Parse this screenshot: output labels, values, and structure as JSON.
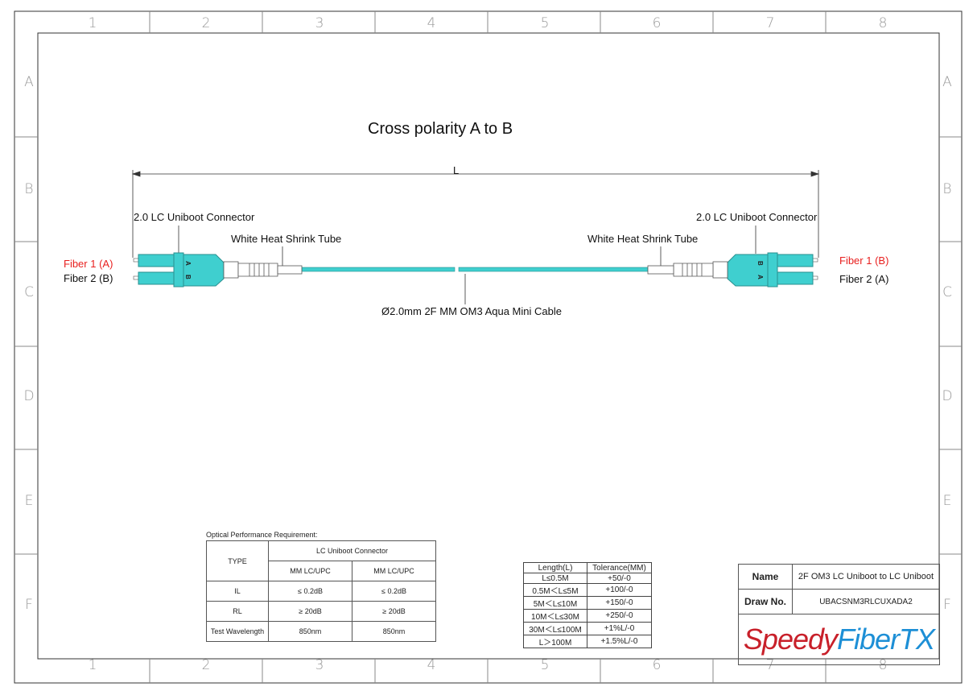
{
  "frame": {
    "columns": [
      "1",
      "2",
      "3",
      "4",
      "5",
      "6",
      "7",
      "8"
    ],
    "rows": [
      "A",
      "B",
      "C",
      "D",
      "E",
      "F"
    ]
  },
  "drawing": {
    "title": "Cross polarity A to B",
    "dimension_label": "L",
    "left_connector_label": "2.0 LC Uniboot Connector",
    "right_connector_label": "2.0 LC Uniboot Connector",
    "left_tube_label": "White Heat Shrink Tube",
    "right_tube_label": "White Heat Shrink Tube",
    "cable_label": "Ø2.0mm 2F MM OM3 Aqua Mini Cable",
    "left_fiber1": "Fiber 1 (A)",
    "left_fiber2": "Fiber 2 (B)",
    "right_fiber1": "Fiber 1 (B)",
    "right_fiber2": "Fiber 2 (A)",
    "left_latch_top": "A",
    "left_latch_bottom": "B",
    "right_latch_top": "B",
    "right_latch_bottom": "A",
    "aqua_color": "#3fcfcf",
    "fiber1_color": "#e8201f"
  },
  "performance": {
    "caption": "Optical Performance Requirement:",
    "type_header": "TYPE",
    "group_header": "LC Uniboot Connector",
    "sub_headers": [
      "MM LC/UPC",
      "MM LC/UPC"
    ],
    "rows": [
      [
        "IL",
        "≤ 0.2dB",
        "≤ 0.2dB"
      ],
      [
        "RL",
        "≥ 20dB",
        "≥ 20dB"
      ],
      [
        "Test Wavelength",
        "850nm",
        "850nm"
      ]
    ]
  },
  "tolerance": {
    "headers": [
      "Length(L)",
      "Tolerance(MM)"
    ],
    "rows": [
      [
        "L≤0.5M",
        "+50/-0"
      ],
      [
        "0.5M＜L≤5M",
        "+100/-0"
      ],
      [
        "5M＜L≤10M",
        "+150/-0"
      ],
      [
        "10M＜L≤30M",
        "+250/-0"
      ],
      [
        "30M＜L≤100M",
        "+1%L/-0"
      ],
      [
        "L＞100M",
        "+1.5%L/-0"
      ]
    ]
  },
  "title_block": {
    "name_label": "Name",
    "name_value": "2F OM3 LC Uniboot to LC Uniboot",
    "draw_label": "Draw No.",
    "draw_value": "UBACSNM3RLCUXADA2",
    "logo_part1": "Speedy",
    "logo_part2": "FiberTX",
    "logo_color1": "#c8202a",
    "logo_color2": "#1d8fd6"
  }
}
